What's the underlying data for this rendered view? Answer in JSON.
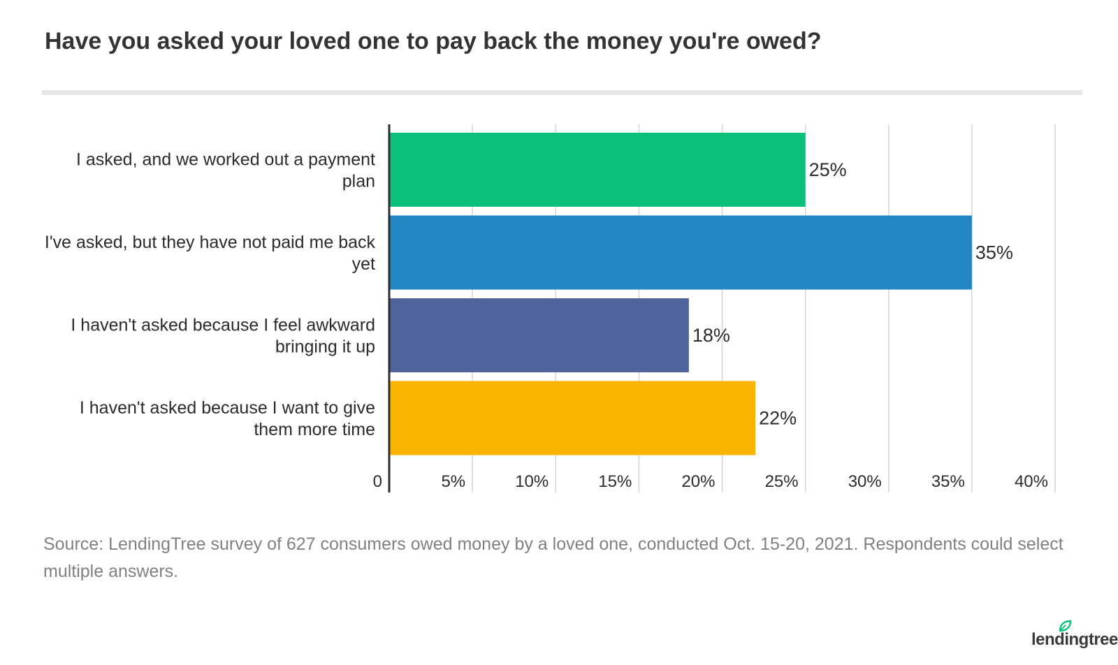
{
  "title": "Have you asked your loved one to pay back the money you're owed?",
  "source": "Source: LendingTree survey of 627 consumers owed money by a loved one, conducted Oct. 15-20, 2021. Respondents could select multiple answers.",
  "logo": "lendingtree",
  "colors": {
    "accent": "#0cc07a"
  },
  "chart_data": {
    "type": "bar",
    "orientation": "horizontal",
    "categories": [
      "I asked, and we worked out a payment plan",
      "I've asked, but they have not paid me back yet",
      "I haven't asked because I feel awkward bringing it up",
      "I haven't asked because I want to give them more time"
    ],
    "values": [
      25,
      35,
      18,
      22
    ],
    "value_labels": [
      "25%",
      "35%",
      "18%",
      "22%"
    ],
    "colors": [
      "#0cc07a",
      "#2287c3",
      "#50639b",
      "#f8b400"
    ],
    "xlim": [
      0,
      40
    ],
    "xticks": [
      0,
      5,
      10,
      15,
      20,
      25,
      30,
      35,
      40
    ],
    "xtick_labels": [
      "0",
      "5%",
      "10%",
      "15%",
      "20%",
      "25%",
      "30%",
      "35%",
      "40%"
    ],
    "xlabel": "",
    "ylabel": "",
    "grid": true,
    "legend": "none"
  }
}
